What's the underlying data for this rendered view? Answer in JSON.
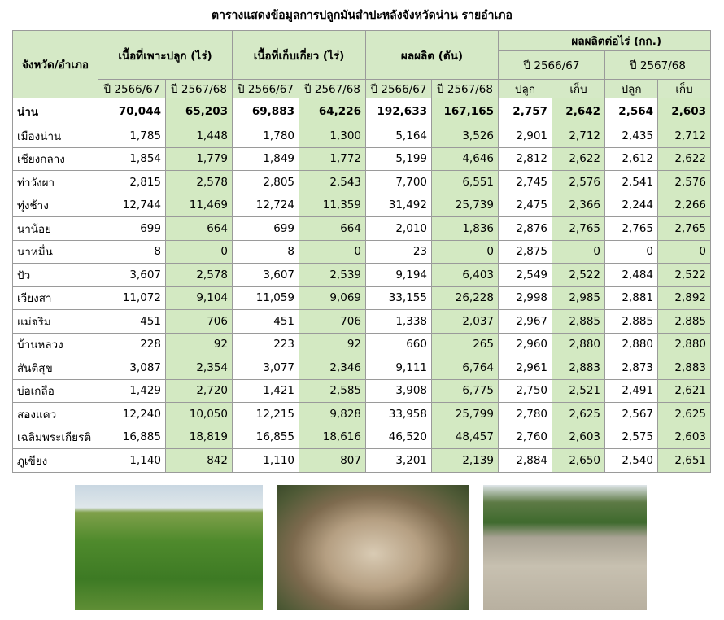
{
  "title": "ตารางแสดงข้อมูลการปลูกมันสำปะหลังจังหวัดน่าน รายอำเภอ",
  "table": {
    "header": {
      "district": "จังหวัด/อำเภอ",
      "groups": [
        "เนื้อที่เพาะปลูก (ไร่)",
        "เนื้อที่เก็บเกี่ยว (ไร่)",
        "ผลผลิต (ตัน)",
        "ผลผลิตต่อไร่ (กก.)"
      ],
      "yield_years": [
        "ปี 2566/67",
        "ปี 2567/68"
      ],
      "sub": [
        "ปี 2566/67",
        "ปี 2567/68",
        "ปี 2566/67",
        "ปี 2567/68",
        "ปี 2566/67",
        "ปี 2567/68",
        "ปลูก",
        "เก็บ",
        "ปลูก",
        "เก็บ"
      ]
    },
    "rows": [
      [
        "น่าน",
        "70,044",
        "65,203",
        "69,883",
        "64,226",
        "192,633",
        "167,165",
        "2,757",
        "2,642",
        "2,564",
        "2,603"
      ],
      [
        "เมืองน่าน",
        "1,785",
        "1,448",
        "1,780",
        "1,300",
        "5,164",
        "3,526",
        "2,901",
        "2,712",
        "2,435",
        "2,712"
      ],
      [
        "เชียงกลาง",
        "1,854",
        "1,779",
        "1,849",
        "1,772",
        "5,199",
        "4,646",
        "2,812",
        "2,622",
        "2,612",
        "2,622"
      ],
      [
        "ท่าวังผา",
        "2,815",
        "2,578",
        "2,805",
        "2,543",
        "7,700",
        "6,551",
        "2,745",
        "2,576",
        "2,541",
        "2,576"
      ],
      [
        "ทุ่งช้าง",
        "12,744",
        "11,469",
        "12,724",
        "11,359",
        "31,492",
        "25,739",
        "2,475",
        "2,366",
        "2,244",
        "2,266"
      ],
      [
        "นาน้อย",
        "699",
        "664",
        "699",
        "664",
        "2,010",
        "1,836",
        "2,876",
        "2,765",
        "2,765",
        "2,765"
      ],
      [
        "นาหมื่น",
        "8",
        "0",
        "8",
        "0",
        "23",
        "0",
        "2,875",
        "0",
        "0",
        "0"
      ],
      [
        "ปัว",
        "3,607",
        "2,578",
        "3,607",
        "2,539",
        "9,194",
        "6,403",
        "2,549",
        "2,522",
        "2,484",
        "2,522"
      ],
      [
        "เวียงสา",
        "11,072",
        "9,104",
        "11,059",
        "9,069",
        "33,155",
        "26,228",
        "2,998",
        "2,985",
        "2,881",
        "2,892"
      ],
      [
        "แม่จริม",
        "451",
        "706",
        "451",
        "706",
        "1,338",
        "2,037",
        "2,967",
        "2,885",
        "2,885",
        "2,885"
      ],
      [
        "บ้านหลวง",
        "228",
        "92",
        "223",
        "92",
        "660",
        "265",
        "2,960",
        "2,880",
        "2,880",
        "2,880"
      ],
      [
        "สันติสุข",
        "3,087",
        "2,354",
        "3,077",
        "2,346",
        "9,111",
        "6,764",
        "2,961",
        "2,883",
        "2,873",
        "2,883"
      ],
      [
        "บ่อเกลือ",
        "1,429",
        "2,720",
        "1,421",
        "2,585",
        "3,908",
        "6,775",
        "2,750",
        "2,521",
        "2,491",
        "2,621"
      ],
      [
        "สองแคว",
        "12,240",
        "10,050",
        "12,215",
        "9,828",
        "33,958",
        "25,799",
        "2,780",
        "2,625",
        "2,567",
        "2,625"
      ],
      [
        "เฉลิมพระเกียรติ",
        "16,885",
        "18,819",
        "16,855",
        "18,616",
        "46,520",
        "48,457",
        "2,760",
        "2,603",
        "2,575",
        "2,603"
      ],
      [
        "ภูเขียง",
        "1,140",
        "842",
        "1,110",
        "807",
        "3,201",
        "2,139",
        "2,884",
        "2,650",
        "2,540",
        "2,651"
      ]
    ]
  }
}
